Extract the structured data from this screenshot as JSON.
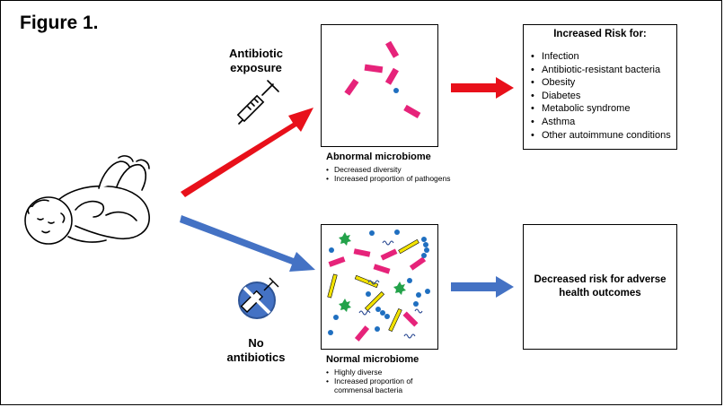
{
  "figure_title": "Figure 1.",
  "exposure": {
    "antibiotic_label_line1": "Antibiotic",
    "antibiotic_label_line2": "exposure",
    "no_antibiotic_line1": "No",
    "no_antibiotic_line2": "antibiotics"
  },
  "abnormal": {
    "title": "Abnormal microbiome",
    "bullets": [
      "Decreased diversity",
      "Increased proportion of pathogens"
    ]
  },
  "normal": {
    "title": "Normal microbiome",
    "bullets": [
      "Highly diverse",
      "Increased proportion of commensal bacteria"
    ]
  },
  "risk": {
    "title": "Increased Risk for:",
    "items": [
      "Infection",
      "Antibiotic-resistant bacteria",
      "Obesity",
      "Diabetes",
      "Metabolic syndrome",
      "Asthma",
      "Other autoimmune conditions"
    ]
  },
  "decreased": {
    "line1": "Decreased risk for adverse",
    "line2": "health outcomes"
  },
  "colors": {
    "red_arrow": "#e8101a",
    "blue_arrow": "#4472c4",
    "pathogen": "#e6237a",
    "commensal_dot": "#1f6fc0",
    "rod_yellow": "#f2e200",
    "star_green": "#23a24a"
  }
}
